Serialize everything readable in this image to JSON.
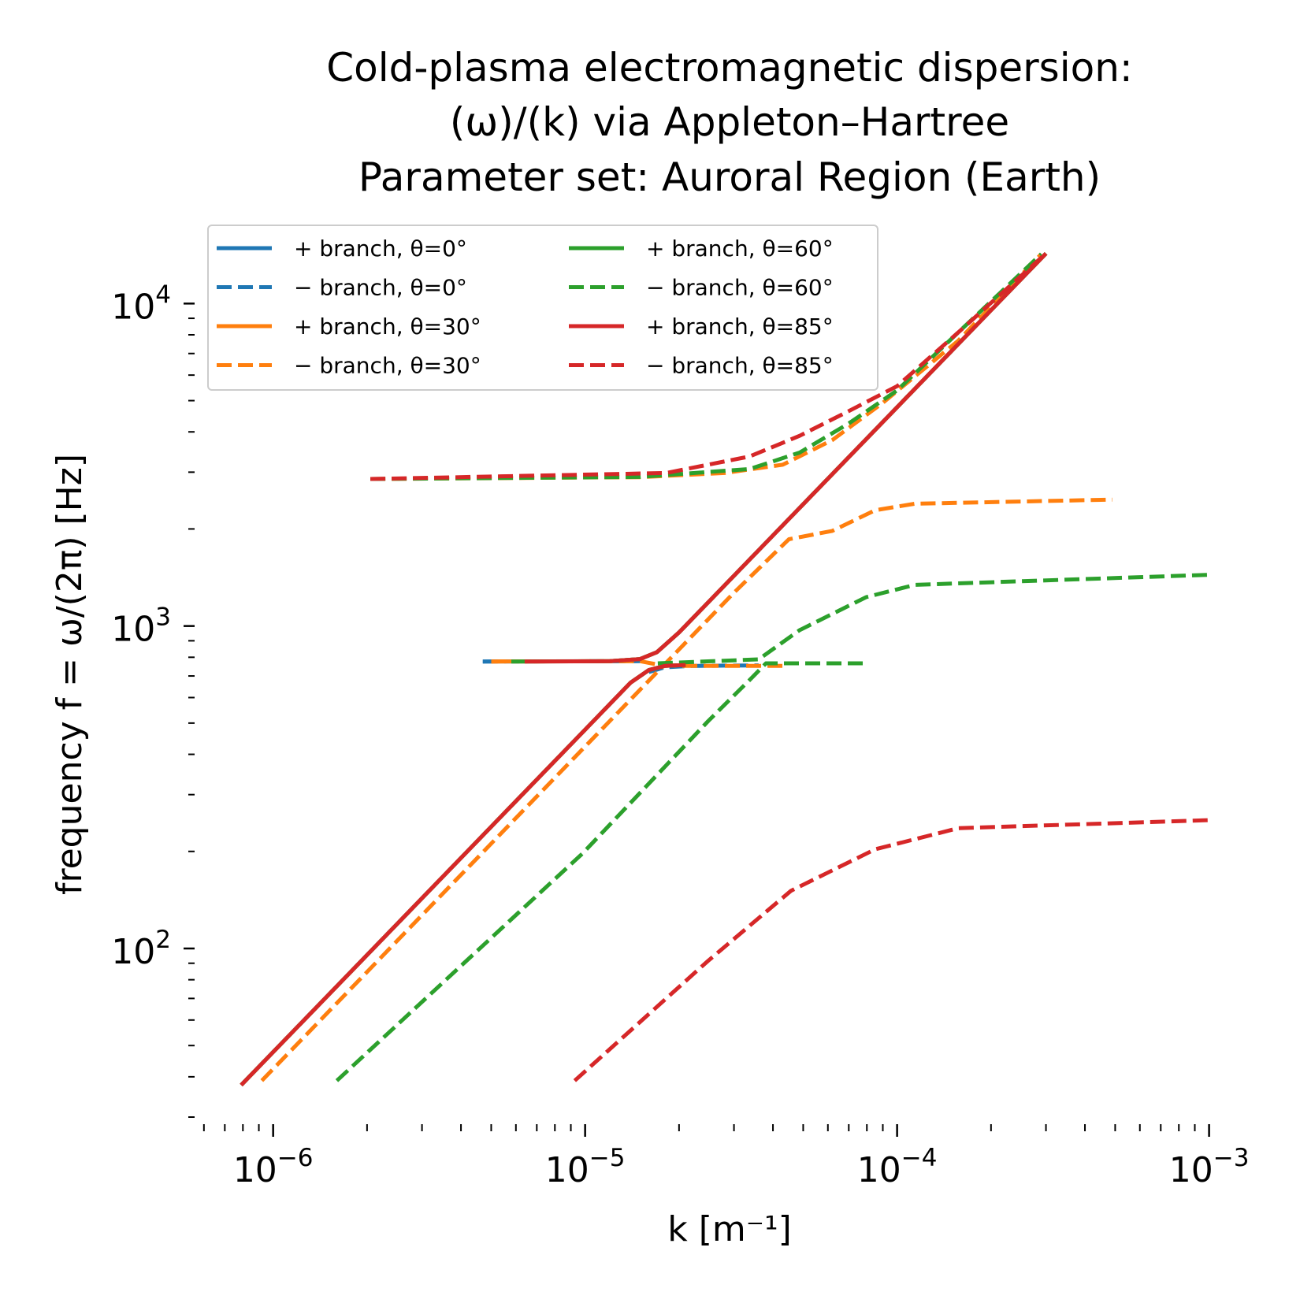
{
  "chart_data": {
    "type": "line",
    "title": [
      "Cold-plasma electromagnetic dispersion:",
      "(ω)/(k) via Appleton–Hartree",
      "Parameter set: Auroral Region (Earth)"
    ],
    "xlabel": "k [m⁻¹]",
    "ylabel": "frequency f = ω/(2π) [Hz]",
    "xscale": "log",
    "yscale": "log",
    "xlim": [
      5.8e-07,
      0.0011
    ],
    "ylim": [
      29.5,
      17000
    ],
    "grid": false,
    "legend_placement": "upper-left",
    "legend_columns": 2,
    "xticks": [
      {
        "value": 1e-06,
        "base": "10",
        "exp": "−6"
      },
      {
        "value": 1e-05,
        "base": "10",
        "exp": "−5"
      },
      {
        "value": 0.0001,
        "base": "10",
        "exp": "−4"
      },
      {
        "value": 0.001,
        "base": "10",
        "exp": "−3"
      }
    ],
    "yticks": [
      {
        "value": 100,
        "base": "10",
        "exp": "2"
      },
      {
        "value": 1000,
        "base": "10",
        "exp": "3"
      },
      {
        "value": 10000,
        "base": "10",
        "exp": "4"
      }
    ],
    "colors": {
      "theta0": "#1f77b4",
      "theta30": "#ff7f0e",
      "theta60": "#2ca02c",
      "theta85": "#d62728"
    },
    "series": [
      {
        "name": "+ branch, θ=0°",
        "color": "#1f77b4",
        "style": "solid",
        "segments": [
          [
            [
              4.7e-06,
              776
            ],
            [
              1.2e-05,
              778
            ],
            [
              1.5e-05,
              790
            ],
            [
              1.7e-05,
              830
            ],
            [
              2e-05,
              955
            ],
            [
              0.0003,
              14300
            ]
          ],
          [
            [
              7.9e-07,
              37.7
            ],
            [
              1.4e-05,
              668
            ],
            [
              1.6e-05,
              730
            ],
            [
              1.8e-05,
              752
            ],
            [
              2.1e-05,
              757
            ]
          ]
        ]
      },
      {
        "name": "− branch, θ=0°",
        "color": "#1f77b4",
        "style": "dashed",
        "segments": [
          [
            [
              4.7e-06,
              776
            ],
            [
              1.5e-05,
              778
            ]
          ],
          [
            [
              1.6e-05,
              720
            ],
            [
              1.8e-05,
              745
            ],
            [
              2.2e-05,
              752
            ],
            [
              3.6e-05,
              755
            ]
          ]
        ]
      },
      {
        "name": "+ branch, θ=30°",
        "color": "#ff7f0e",
        "style": "solid",
        "segments": [
          [
            [
              5e-06,
              776
            ],
            [
              1.2e-05,
              778
            ],
            [
              1.5e-05,
              790
            ],
            [
              1.7e-05,
              830
            ],
            [
              2e-05,
              955
            ],
            [
              0.0003,
              14300
            ]
          ],
          [
            [
              7.9e-07,
              37.7
            ],
            [
              1.4e-05,
              668
            ],
            [
              1.6e-05,
              730
            ],
            [
              1.8e-05,
              752
            ],
            [
              2.1e-05,
              757
            ]
          ]
        ]
      },
      {
        "name": "− branch, θ=30°",
        "color": "#ff7f0e",
        "style": "dashed",
        "segments": [
          [
            [
              2.05e-06,
              2857
            ],
            [
              1.5e-05,
              2895
            ],
            [
              2.8e-05,
              2983
            ],
            [
              4.3e-05,
              3164
            ],
            [
              6.2e-05,
              3774
            ],
            [
              9e-05,
              4923
            ],
            [
              0.000157,
              7670
            ],
            [
              0.00029,
              14250
            ]
          ],
          [
            [
              9.2e-07,
              38.9
            ],
            [
              3e-05,
              1269
            ],
            [
              4.5e-05,
              1858
            ],
            [
              6.2e-05,
              1972
            ],
            [
              8.5e-05,
              2286
            ],
            [
              0.000114,
              2395
            ],
            [
              0.00049,
              2466
            ]
          ],
          [
            [
              5e-06,
              776
            ],
            [
              1.5e-05,
              778
            ],
            [
              1.7e-05,
              760
            ],
            [
              2e-05,
              752
            ],
            [
              4.3e-05,
              752
            ]
          ]
        ]
      },
      {
        "name": "+ branch, θ=60°",
        "color": "#2ca02c",
        "style": "solid",
        "segments": [
          [
            [
              5.8e-06,
              776
            ],
            [
              1.2e-05,
              778
            ],
            [
              1.5e-05,
              790
            ],
            [
              1.7e-05,
              830
            ],
            [
              2e-05,
              955
            ],
            [
              0.0003,
              14300
            ]
          ],
          [
            [
              7.9e-07,
              37.7
            ],
            [
              1.4e-05,
              668
            ],
            [
              1.6e-05,
              730
            ],
            [
              1.8e-05,
              752
            ],
            [
              2.1e-05,
              757
            ]
          ]
        ]
      },
      {
        "name": "− branch, θ=60°",
        "color": "#2ca02c",
        "style": "dashed",
        "segments": [
          [
            [
              2.05e-06,
              2857
            ],
            [
              1.5e-05,
              2900
            ],
            [
              3.37e-05,
              3069
            ],
            [
              4.87e-05,
              3451
            ],
            [
              7e-05,
              4248
            ],
            [
              0.0001,
              5377
            ],
            [
              0.000157,
              8135
            ],
            [
              0.00029,
              14250
            ]
          ],
          [
            [
              1.6e-06,
              38.9
            ],
            [
              9.8e-06,
              197
            ],
            [
              2.48e-05,
              507
            ],
            [
              3.37e-05,
              681
            ],
            [
              3.8e-05,
              766
            ],
            [
              7.96e-05,
              766
            ]
          ],
          [
            [
              1.71e-05,
              766
            ],
            [
              3.6e-05,
              788
            ],
            [
              4.87e-05,
              971
            ],
            [
              7.96e-05,
              1229
            ],
            [
              0.000114,
              1342
            ],
            [
              0.00099,
              1441
            ]
          ]
        ]
      },
      {
        "name": "+ branch, θ=85°",
        "color": "#d62728",
        "style": "solid",
        "segments": [
          [
            [
              6.4e-06,
              776
            ],
            [
              1.2e-05,
              778
            ],
            [
              1.5e-05,
              790
            ],
            [
              1.7e-05,
              830
            ],
            [
              2e-05,
              955
            ],
            [
              0.0003,
              14300
            ]
          ],
          [
            [
              7.9e-07,
              37.7
            ],
            [
              1.4e-05,
              668
            ],
            [
              1.6e-05,
              730
            ],
            [
              1.8e-05,
              752
            ],
            [
              2.1e-05,
              757
            ]
          ]
        ]
      },
      {
        "name": "− branch, θ=85°",
        "color": "#d62728",
        "style": "dashed",
        "segments": [
          [
            [
              2.05e-06,
              2857
            ],
            [
              1.82e-05,
              2983
            ],
            [
              3.37e-05,
              3357
            ],
            [
              4.87e-05,
              3890
            ],
            [
              7e-05,
              4642
            ],
            [
              0.0001,
              5543
            ],
            [
              0.000157,
              8135
            ],
            [
              0.0003,
              14300
            ]
          ],
          [
            [
              9.26e-06,
              38.9
            ],
            [
              2.48e-05,
              91.6
            ],
            [
              4.57e-05,
              151
            ],
            [
              8.5e-05,
              203
            ],
            [
              0.000157,
              236
            ],
            [
              0.00099,
              250
            ]
          ]
        ]
      }
    ]
  }
}
